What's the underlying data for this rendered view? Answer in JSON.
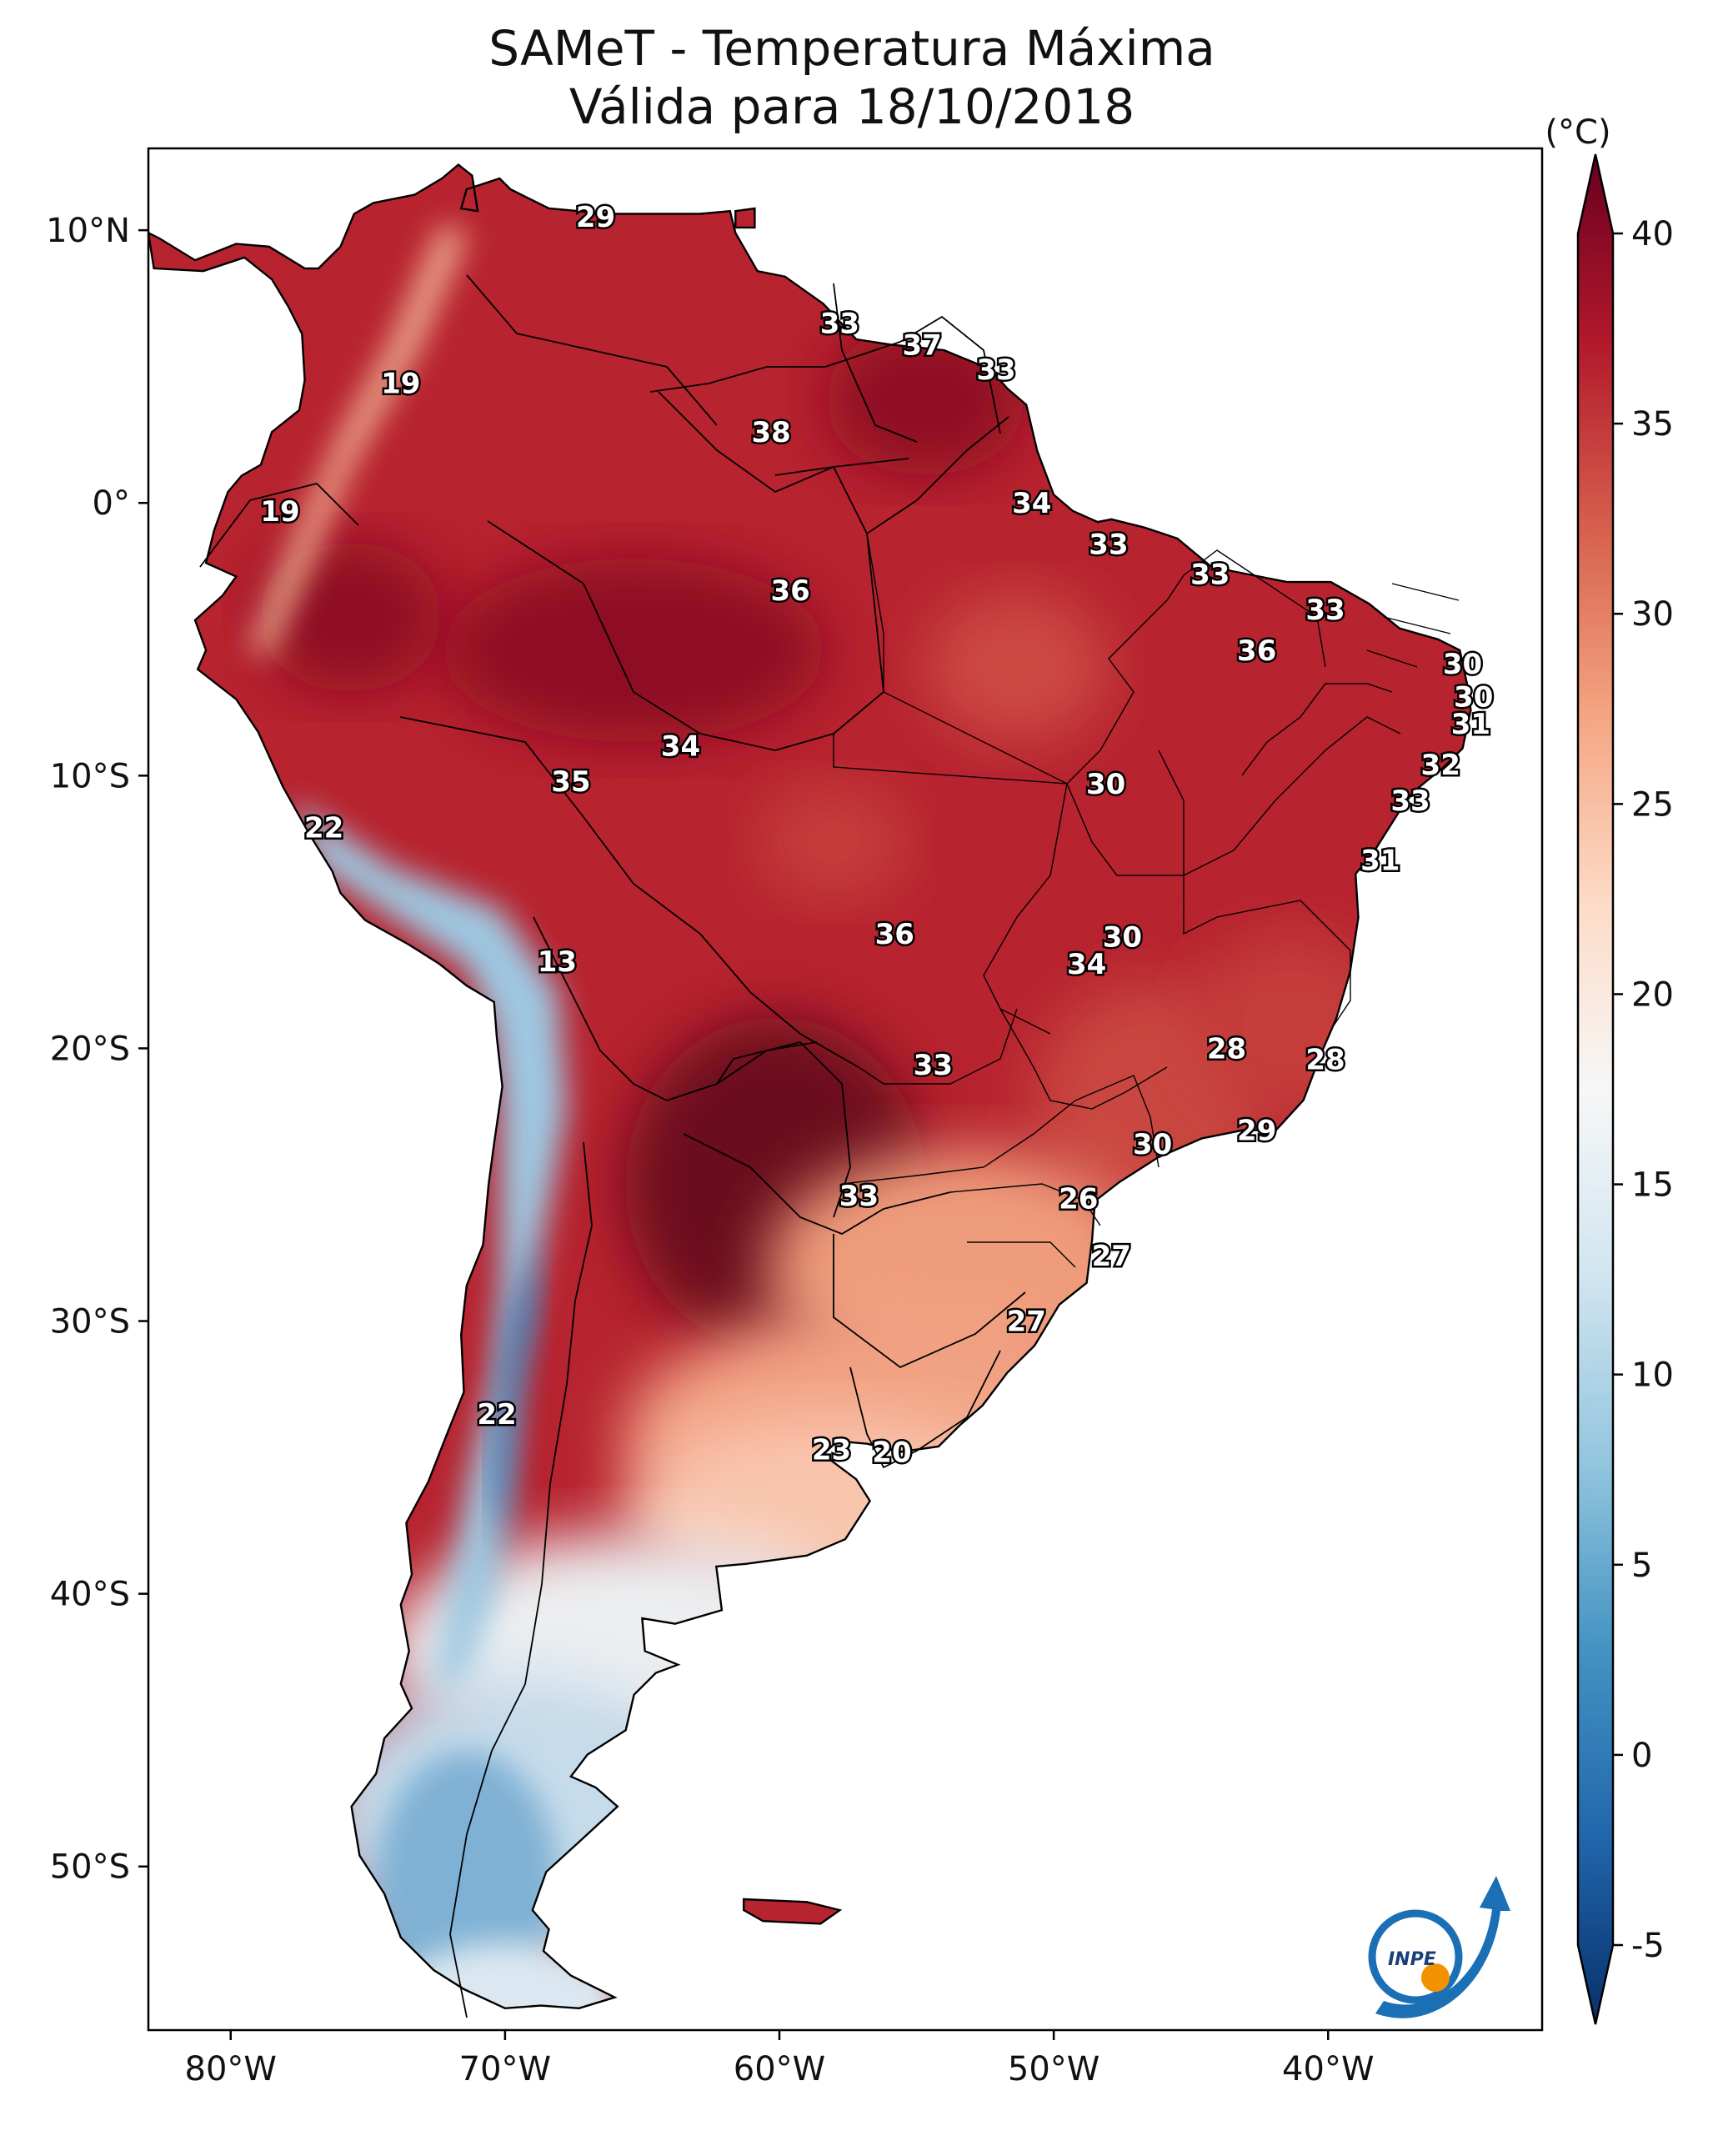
{
  "title_line1": "SAMeT - Temperatura Máxima",
  "title_line2": "Válida para 18/10/2018",
  "units": "(°C)",
  "logo_text": "INPE",
  "lon_ticks": [
    "80°W",
    "70°W",
    "60°W",
    "50°W",
    "40°W"
  ],
  "lat_ticks": [
    "10°N",
    "0°",
    "10°S",
    "20°S",
    "30°S",
    "40°S",
    "50°S"
  ],
  "colorbar": {
    "min": -7,
    "max": 42,
    "ticks": [
      "-5",
      "0",
      "5",
      "10",
      "15",
      "20",
      "25",
      "30",
      "35",
      "40"
    ],
    "colors": [
      "#08306b",
      "#2166ac",
      "#4393c3",
      "#92c5de",
      "#d1e5f0",
      "#f7f7f7",
      "#fddbc7",
      "#f4a582",
      "#d6604d",
      "#b2182b",
      "#67001f"
    ]
  },
  "value_labels": [
    {
      "text": "29",
      "lon": -66.7,
      "lat": 10.5
    },
    {
      "text": "33",
      "lon": -57.8,
      "lat": 6.6
    },
    {
      "text": "37",
      "lon": -54.8,
      "lat": 5.8
    },
    {
      "text": "33",
      "lon": -52.1,
      "lat": 4.9
    },
    {
      "text": "19",
      "lon": -73.8,
      "lat": 4.4
    },
    {
      "text": "38",
      "lon": -60.3,
      "lat": 2.6
    },
    {
      "text": "34",
      "lon": -50.8,
      "lat": 0.0
    },
    {
      "text": "19",
      "lon": -78.2,
      "lat": -0.3
    },
    {
      "text": "33",
      "lon": -48.0,
      "lat": -1.5
    },
    {
      "text": "33",
      "lon": -44.3,
      "lat": -2.6
    },
    {
      "text": "36",
      "lon": -59.6,
      "lat": -3.2
    },
    {
      "text": "33",
      "lon": -40.1,
      "lat": -3.9
    },
    {
      "text": "36",
      "lon": -42.6,
      "lat": -5.4
    },
    {
      "text": "30",
      "lon": -35.1,
      "lat": -5.9
    },
    {
      "text": "30",
      "lon": -34.7,
      "lat": -7.1
    },
    {
      "text": "31",
      "lon": -34.8,
      "lat": -8.1
    },
    {
      "text": "34",
      "lon": -63.6,
      "lat": -8.9
    },
    {
      "text": "32",
      "lon": -35.9,
      "lat": -9.6
    },
    {
      "text": "35",
      "lon": -67.6,
      "lat": -10.2
    },
    {
      "text": "30",
      "lon": -48.1,
      "lat": -10.3
    },
    {
      "text": "33",
      "lon": -37.0,
      "lat": -10.9
    },
    {
      "text": "22",
      "lon": -76.6,
      "lat": -11.9
    },
    {
      "text": "31",
      "lon": -38.1,
      "lat": -13.1
    },
    {
      "text": "36",
      "lon": -55.8,
      "lat": -15.8
    },
    {
      "text": "30",
      "lon": -47.5,
      "lat": -15.9
    },
    {
      "text": "13",
      "lon": -68.1,
      "lat": -16.8
    },
    {
      "text": "34",
      "lon": -48.8,
      "lat": -16.9
    },
    {
      "text": "28",
      "lon": -43.7,
      "lat": -20.0
    },
    {
      "text": "28",
      "lon": -40.1,
      "lat": -20.4
    },
    {
      "text": "33",
      "lon": -54.4,
      "lat": -20.6
    },
    {
      "text": "29",
      "lon": -42.6,
      "lat": -23.0
    },
    {
      "text": "30",
      "lon": -46.4,
      "lat": -23.5
    },
    {
      "text": "33",
      "lon": -57.1,
      "lat": -25.4
    },
    {
      "text": "26",
      "lon": -49.1,
      "lat": -25.5
    },
    {
      "text": "27",
      "lon": -47.9,
      "lat": -27.6
    },
    {
      "text": "27",
      "lon": -51.0,
      "lat": -30.0
    },
    {
      "text": "22",
      "lon": -70.3,
      "lat": -33.4
    },
    {
      "text": "23",
      "lon": -58.1,
      "lat": -34.7
    },
    {
      "text": "20",
      "lon": -55.9,
      "lat": -34.8
    }
  ]
}
